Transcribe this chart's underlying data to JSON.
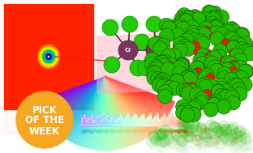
{
  "bg_color": "#ffffff",
  "badge_color": "#F5A623",
  "badge_text": [
    "PICK",
    "OF THE",
    "WEEK"
  ],
  "badge_text_color": "#ffffff",
  "badge_fontsize": 8.5,
  "xray_rings": [
    [
      0.13,
      "#ff2200"
    ],
    [
      0.11,
      "#ff8800"
    ],
    [
      0.09,
      "#ffee00"
    ],
    [
      0.075,
      "#aaee00"
    ],
    [
      0.06,
      "#00cc44"
    ],
    [
      0.045,
      "#00bbcc"
    ],
    [
      0.032,
      "#0044cc"
    ],
    [
      0.02,
      "#000088"
    ],
    [
      0.012,
      "#880000"
    ],
    [
      0.007,
      "#cc2222"
    ],
    [
      0.003,
      "#ffffff"
    ]
  ],
  "cl_color": "#22cc00",
  "cr_color": "#7b3560",
  "green_ball_color": "#22bb00",
  "red_ball_color": "#dd2200",
  "green_ball_edge": "#115500",
  "red_ball_edge": "#881100"
}
